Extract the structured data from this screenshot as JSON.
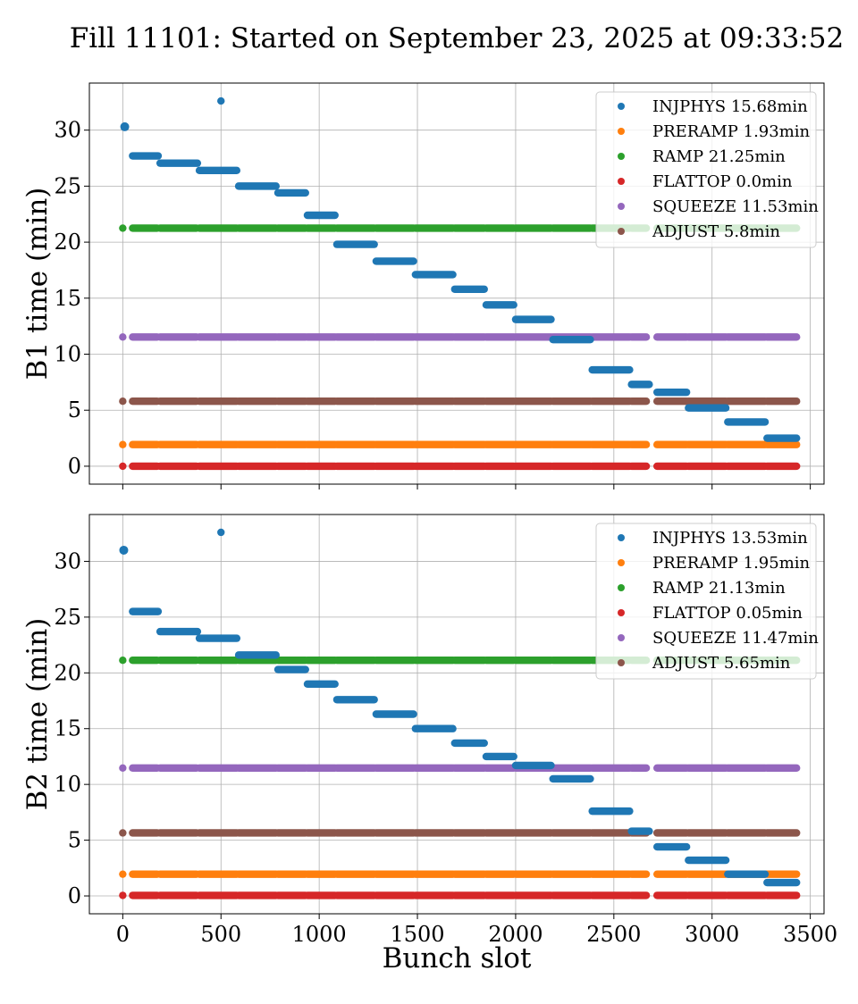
{
  "figure": {
    "title": "Fill 11101: Started on September 23, 2025 at 09:33:52"
  },
  "colors": {
    "INJPHYS": "#1f77b4",
    "PRERAMP": "#ff7f0e",
    "RAMP": "#2ca02c",
    "FLATTOP": "#d62728",
    "SQUEEZE": "#9467bd",
    "ADJUST": "#8c564b"
  },
  "chart_data": [
    {
      "type": "scatter",
      "ylabel": "B1 time (min)",
      "xlabel": "",
      "xlim": [
        -170,
        3570
      ],
      "ylim": [
        -1.6,
        34.2
      ],
      "xticks": [
        0,
        500,
        1000,
        1500,
        2000,
        2500,
        3000,
        3500
      ],
      "yticks": [
        0,
        5,
        10,
        15,
        20,
        25,
        30
      ],
      "grid": true,
      "legend": "upper right",
      "legend_entries": [
        "INJPHYS 15.68min",
        "PRERAMP 1.93min",
        "RAMP 21.25min",
        "FLATTOP 0.0min",
        "SQUEEZE 11.53min",
        "ADJUST 5.8min"
      ],
      "series": [
        {
          "name": "INJPHYS 15.68min",
          "points": [
            [
              10,
              30.3
            ],
            [
              500,
              32.6
            ]
          ],
          "segments": [
            [
              50,
              180,
              27.7
            ],
            [
              190,
              380,
              27.05
            ],
            [
              390,
              580,
              26.4
            ],
            [
              590,
              780,
              25.0
            ],
            [
              790,
              930,
              24.4
            ],
            [
              940,
              1080,
              22.4
            ],
            [
              1090,
              1280,
              19.8
            ],
            [
              1290,
              1480,
              18.3
            ],
            [
              1490,
              1680,
              17.1
            ],
            [
              1690,
              1840,
              15.8
            ],
            [
              1850,
              1990,
              14.4
            ],
            [
              2000,
              2180,
              13.1
            ],
            [
              2190,
              2380,
              11.3
            ],
            [
              2390,
              2580,
              8.6
            ],
            [
              2590,
              2680,
              7.3
            ],
            [
              2720,
              2870,
              6.6
            ],
            [
              2880,
              3070,
              5.2
            ],
            [
              3080,
              3270,
              3.95
            ],
            [
              3280,
              3430,
              2.5
            ]
          ]
        },
        {
          "name": "PRERAMP 1.93min",
          "y": 1.93
        },
        {
          "name": "RAMP 21.25min",
          "y": 21.25
        },
        {
          "name": "FLATTOP 0.0min",
          "y": 0.0
        },
        {
          "name": "SQUEEZE 11.53min",
          "y": 11.53
        },
        {
          "name": "ADJUST 5.8min",
          "y": 5.8
        }
      ]
    },
    {
      "type": "scatter",
      "ylabel": "B2 time (min)",
      "xlabel": "Bunch slot",
      "xlim": [
        -170,
        3570
      ],
      "ylim": [
        -1.6,
        34.2
      ],
      "xticks": [
        0,
        500,
        1000,
        1500,
        2000,
        2500,
        3000,
        3500
      ],
      "yticks": [
        0,
        5,
        10,
        15,
        20,
        25,
        30
      ],
      "grid": true,
      "legend": "upper right",
      "legend_entries": [
        "INJPHYS 13.53min",
        "PRERAMP 1.95min",
        "RAMP 21.13min",
        "FLATTOP 0.05min",
        "SQUEEZE 11.47min",
        "ADJUST 5.65min"
      ],
      "series": [
        {
          "name": "INJPHYS 13.53min",
          "points": [
            [
              5,
              31.0
            ],
            [
              500,
              32.6
            ]
          ],
          "segments": [
            [
              50,
              180,
              25.5
            ],
            [
              190,
              380,
              23.7
            ],
            [
              390,
              580,
              23.1
            ],
            [
              590,
              780,
              21.6
            ],
            [
              790,
              930,
              20.3
            ],
            [
              940,
              1080,
              19.0
            ],
            [
              1090,
              1280,
              17.6
            ],
            [
              1290,
              1480,
              16.3
            ],
            [
              1490,
              1680,
              15.0
            ],
            [
              1690,
              1840,
              13.7
            ],
            [
              1850,
              1990,
              12.5
            ],
            [
              2000,
              2180,
              11.7
            ],
            [
              2190,
              2380,
              10.5
            ],
            [
              2390,
              2580,
              7.6
            ],
            [
              2590,
              2680,
              5.8
            ],
            [
              2720,
              2870,
              4.4
            ],
            [
              2880,
              3070,
              3.2
            ],
            [
              3080,
              3270,
              1.95
            ],
            [
              3280,
              3430,
              1.2
            ]
          ]
        },
        {
          "name": "PRERAMP 1.95min",
          "y": 1.95
        },
        {
          "name": "RAMP 21.13min",
          "y": 21.13
        },
        {
          "name": "FLATTOP 0.05min",
          "y": 0.05
        },
        {
          "name": "SQUEEZE 11.47min",
          "y": 11.47
        },
        {
          "name": "ADJUST 5.65min",
          "y": 5.65
        }
      ]
    }
  ]
}
